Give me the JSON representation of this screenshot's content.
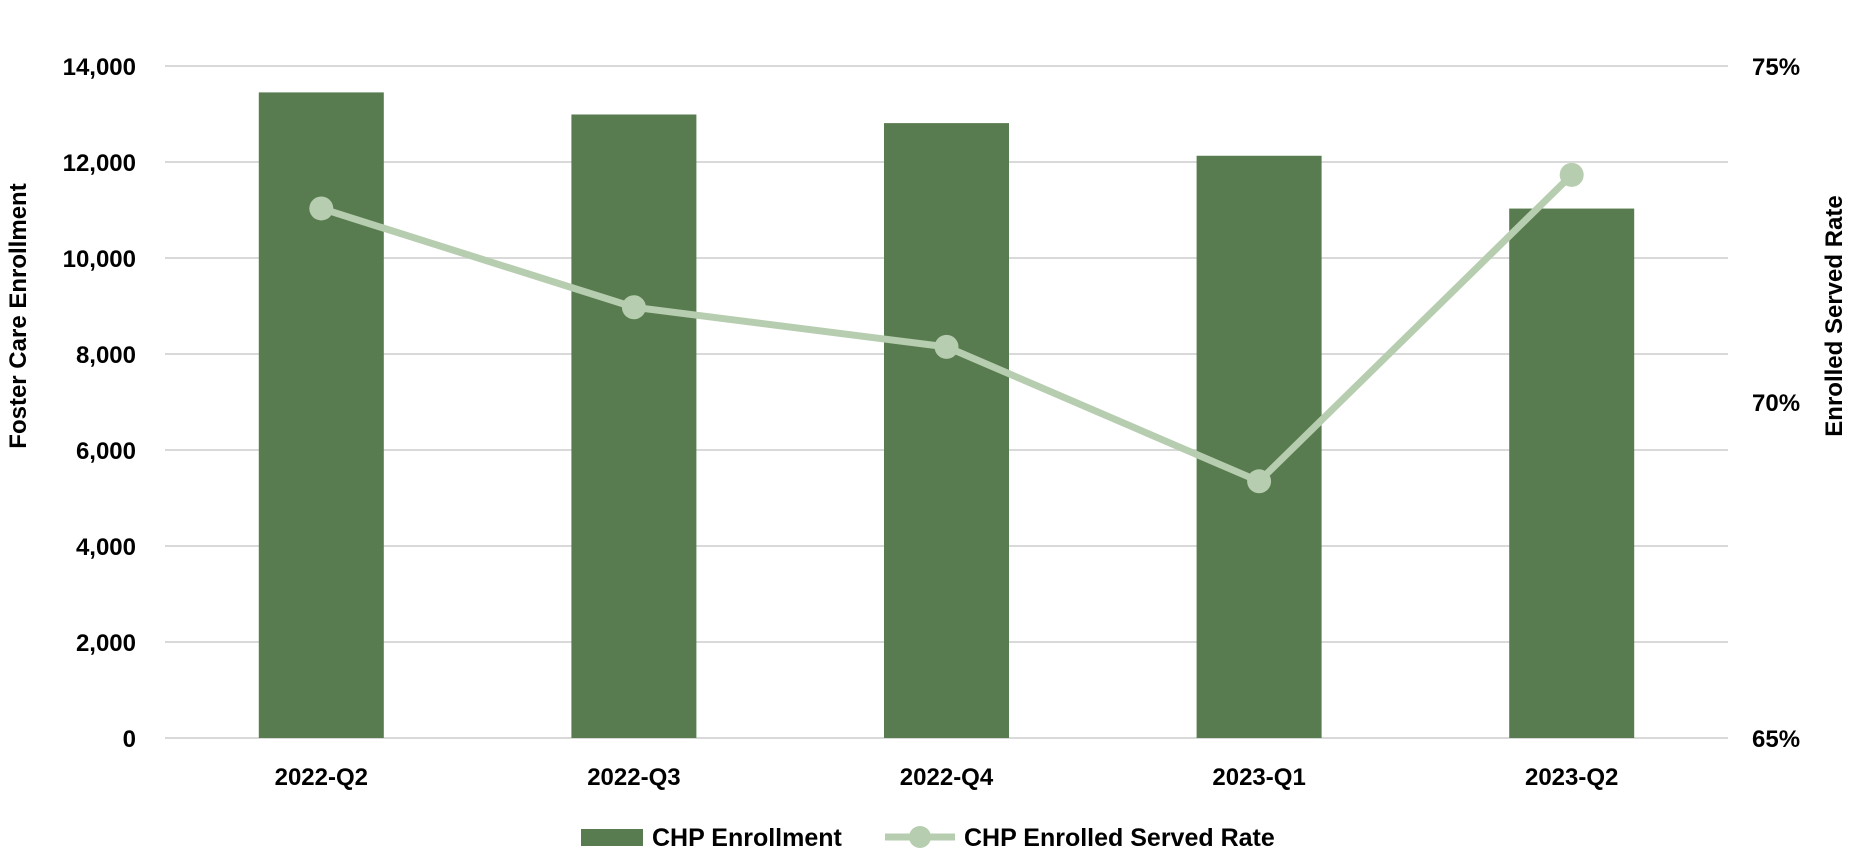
{
  "chart_data": {
    "type": "bar",
    "categories": [
      "2022-Q2",
      "2022-Q3",
      "2022-Q4",
      "2023-Q1",
      "2023-Q2"
    ],
    "series": [
      {
        "name": "CHP Enrollment",
        "kind": "bar",
        "axis": "left",
        "values": [
          13450,
          12990,
          12810,
          12130,
          11030
        ]
      },
      {
        "name": "CHP Enrolled Served Rate",
        "kind": "line",
        "axis": "right",
        "values": [
          0.7288,
          0.7141,
          0.7082,
          0.6882,
          0.7338
        ]
      }
    ],
    "ylabel": "Foster Care Enrollment",
    "ylabel_right": "Enrolled Served Rate",
    "ylim": [
      0,
      14000
    ],
    "ylim_right": [
      0.65,
      0.75
    ],
    "yticks": [
      "0",
      "2,000",
      "4,000",
      "6,000",
      "8,000",
      "10,000",
      "12,000",
      "14,000"
    ],
    "yticks_right": [
      "65%",
      "70%",
      "75%"
    ],
    "grid": true,
    "legend_position": "bottom",
    "colors": {
      "bar": "#587c4f",
      "line": "#b6cdaf",
      "grid": "#d9d9d9"
    }
  }
}
